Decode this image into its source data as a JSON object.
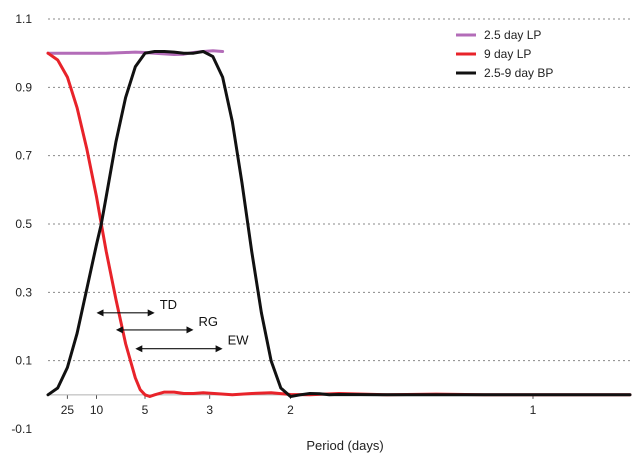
{
  "chart_data": {
    "type": "line",
    "xlabel": "Period (days)",
    "ylabel": "",
    "xscale": "frequency (1/period)",
    "xlim": [
      0,
      1.2
    ],
    "ylim": [
      -0.1,
      1.1
    ],
    "grid": "horizontal dotted",
    "y_ticks": [
      "1.1",
      "0.9",
      "0.7",
      "0.5",
      "0.3",
      "0.1",
      "-0.1"
    ],
    "x_ticks": [
      {
        "label": "25",
        "period": 25
      },
      {
        "label": "10",
        "period": 10
      },
      {
        "label": "5",
        "period": 5
      },
      {
        "label": "3",
        "period": 3
      },
      {
        "label": "2",
        "period": 2
      },
      {
        "label": "1",
        "period": 1
      }
    ],
    "legend": {
      "position": "top-right",
      "entries": [
        "2.5 day LP",
        "9 day LP",
        "2.5-9 day BP"
      ]
    },
    "series": [
      {
        "name": "2.5 day LP",
        "color": "#b36cb8",
        "x": [
          0.0,
          0.04,
          0.08,
          0.12,
          0.16,
          0.18,
          0.2,
          0.22,
          0.24,
          0.26,
          0.28,
          0.3,
          0.32,
          0.34,
          0.36
        ],
        "y": [
          1.0,
          1.0,
          1.0,
          1.0,
          1.002,
          1.003,
          1.002,
          1.0,
          0.998,
          0.996,
          0.997,
          1.002,
          1.005,
          1.007,
          1.005
        ]
      },
      {
        "name": "9 day LP",
        "color": "#e8232a",
        "x": [
          0.0,
          0.02,
          0.04,
          0.06,
          0.08,
          0.1,
          0.11,
          0.12,
          0.14,
          0.16,
          0.18,
          0.19,
          0.2,
          0.21,
          0.22,
          0.24,
          0.26,
          0.28,
          0.3,
          0.32,
          0.35,
          0.38,
          0.42,
          0.46,
          0.5,
          0.54,
          0.6,
          0.7,
          0.8,
          0.9,
          1.0,
          1.1,
          1.2
        ],
        "y": [
          1.0,
          0.98,
          0.93,
          0.84,
          0.72,
          0.58,
          0.5,
          0.42,
          0.28,
          0.15,
          0.05,
          0.015,
          0.0,
          -0.005,
          0.0,
          0.008,
          0.008,
          0.004,
          0.004,
          0.006,
          0.003,
          0.0,
          0.004,
          0.006,
          0.001,
          0.0,
          0.004,
          0.0,
          0.002,
          0.0,
          0.0,
          0.0,
          0.0
        ]
      },
      {
        "name": "2.5-9 day BP",
        "color": "#111111",
        "x": [
          0.0,
          0.02,
          0.04,
          0.06,
          0.08,
          0.1,
          0.11,
          0.12,
          0.14,
          0.16,
          0.18,
          0.2,
          0.22,
          0.24,
          0.26,
          0.28,
          0.3,
          0.32,
          0.34,
          0.36,
          0.38,
          0.4,
          0.42,
          0.44,
          0.46,
          0.48,
          0.5,
          0.52,
          0.54,
          0.56,
          0.58,
          0.6,
          0.7,
          0.8,
          0.9,
          1.0,
          1.1,
          1.2
        ],
        "y": [
          0.0,
          0.02,
          0.08,
          0.18,
          0.31,
          0.44,
          0.5,
          0.58,
          0.74,
          0.87,
          0.96,
          1.0,
          1.005,
          1.005,
          1.003,
          1.0,
          1.0,
          1.005,
          0.99,
          0.93,
          0.8,
          0.62,
          0.42,
          0.24,
          0.1,
          0.02,
          -0.005,
          0.0,
          0.004,
          0.003,
          0.0,
          0.001,
          0.0,
          0.0,
          0.0,
          0.0,
          0.0,
          0.0
        ]
      }
    ],
    "annotations": [
      {
        "label": "TD",
        "x_start": 0.1,
        "x_end": 0.22,
        "y": 0.24
      },
      {
        "label": "RG",
        "x_start": 0.14,
        "x_end": 0.3,
        "y": 0.19
      },
      {
        "label": "EW",
        "x_start": 0.18,
        "x_end": 0.36,
        "y": 0.135
      }
    ]
  }
}
